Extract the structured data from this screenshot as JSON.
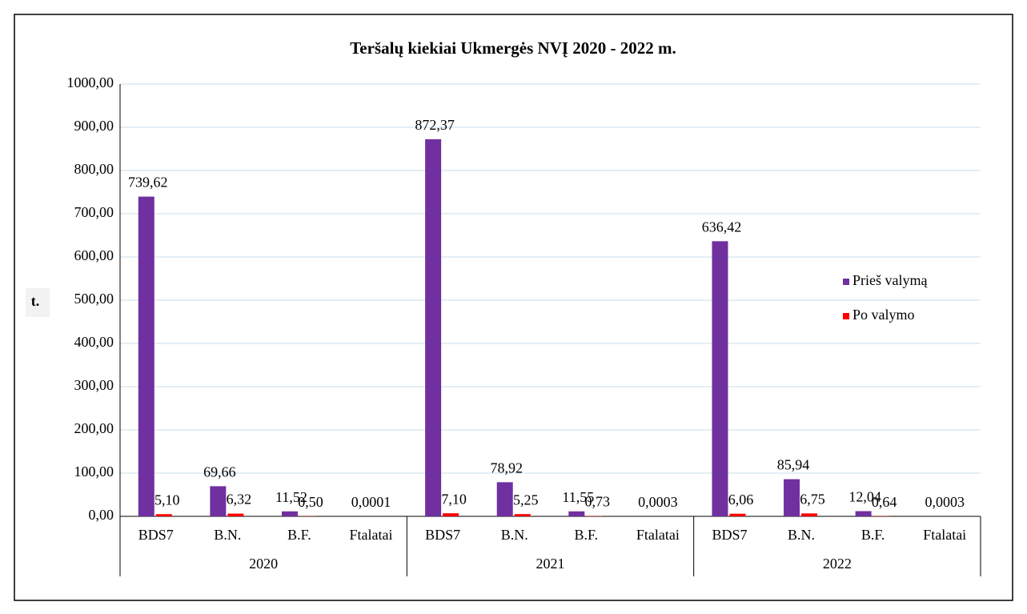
{
  "chart_data": {
    "type": "bar",
    "title": "Teršalų kiekiai Ukmergės NVĮ 2020 - 2022 m.",
    "y_label": "t.",
    "categories": [
      "BDS7",
      "B.N.",
      "B.F.",
      "Ftalatai",
      "BDS7",
      "B.N.",
      "B.F.",
      "Ftalatai",
      "BDS7",
      "B.N.",
      "B.F.",
      "Ftalatai"
    ],
    "groups": [
      "2020",
      "2021",
      "2022"
    ],
    "series": [
      {
        "name": "Prieš valymą",
        "color": "#7030a0",
        "values": [
          739.62,
          69.66,
          11.52,
          0.0001,
          872.37,
          78.92,
          11.55,
          0.0003,
          636.42,
          85.94,
          12.04,
          0.0003
        ],
        "value_labels": [
          "739,62",
          "69,66",
          "11,52",
          "0,0001",
          "872,37",
          "78,92",
          "11,55",
          "0,0003",
          "636,42",
          "85,94",
          "12,04",
          "0,0003"
        ]
      },
      {
        "name": "Po valymo",
        "color": "#ff0000",
        "values": [
          5.1,
          6.32,
          0.5,
          null,
          7.1,
          5.25,
          0.73,
          null,
          6.06,
          6.75,
          0.64,
          null
        ],
        "value_labels": [
          "5,10",
          "6,32",
          "0,50",
          null,
          "7,10",
          "5,25",
          "0,73",
          null,
          "6,06",
          "6,75",
          "0,64",
          null
        ]
      }
    ],
    "ylim": [
      0,
      1000
    ],
    "yticks": [
      {
        "value": 0,
        "label": "0,00"
      },
      {
        "value": 100,
        "label": "100,00"
      },
      {
        "value": 200,
        "label": "200,00"
      },
      {
        "value": 300,
        "label": "300,00"
      },
      {
        "value": 400,
        "label": "400,00"
      },
      {
        "value": 500,
        "label": "500,00"
      },
      {
        "value": 600,
        "label": "600,00"
      },
      {
        "value": 700,
        "label": "700,00"
      },
      {
        "value": 800,
        "label": "800,00"
      },
      {
        "value": 900,
        "label": "900,00"
      },
      {
        "value": 1000,
        "label": "1000,00"
      }
    ],
    "grid": true,
    "legend": "right"
  }
}
